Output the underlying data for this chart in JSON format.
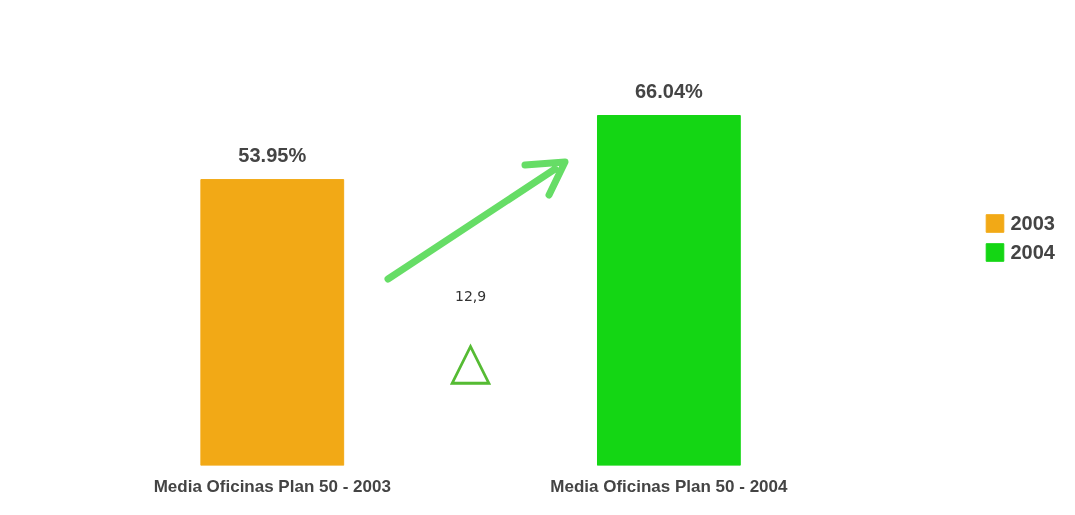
{
  "chart_data": {
    "type": "bar",
    "categories": [
      "Media Oficinas Plan 50 - 2003",
      "Media Oficinas Plan 50 - 2004"
    ],
    "series": [
      {
        "name": "2003",
        "color": "#f2a916",
        "values": [
          53.95,
          null
        ],
        "value_labels": [
          "53.95%",
          null
        ]
      },
      {
        "name": "2004",
        "color": "#14d614",
        "values": [
          null,
          66.04
        ],
        "value_labels": [
          null,
          "66.04%"
        ]
      }
    ],
    "annotations": [
      "12,9",
      "△"
    ],
    "data_labels": true,
    "legend": "right",
    "grid": false
  }
}
